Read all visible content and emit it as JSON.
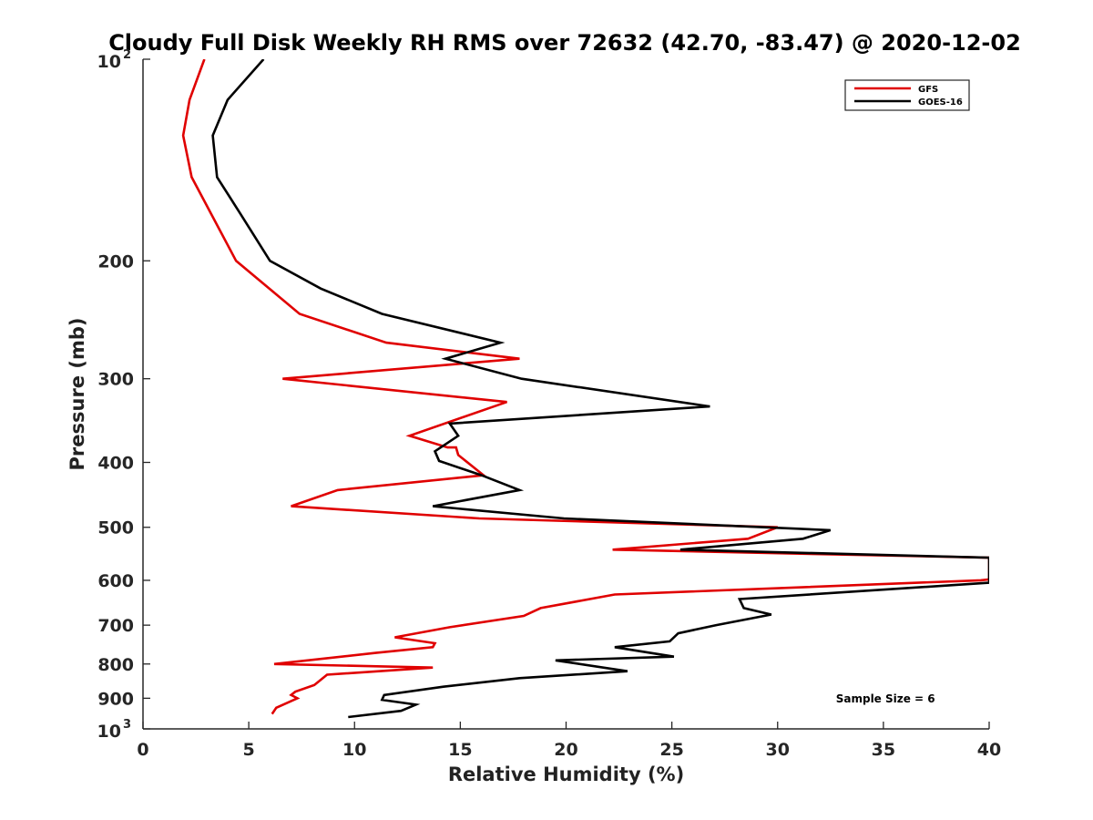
{
  "chart_data": {
    "type": "line",
    "title": "Cloudy Full Disk Weekly RH RMS over 72632 (42.70, -83.47) @ 2020-12-02",
    "xlabel": "Relative Humidity (%)",
    "ylabel": "Pressure (mb)",
    "xlim": [
      0,
      40
    ],
    "ylim": [
      100,
      1000
    ],
    "y_scale": "log",
    "y_reversed": true,
    "grid": false,
    "legend_position": "top-right",
    "x_ticks": [
      "0",
      "5",
      "10",
      "15",
      "20",
      "25",
      "30",
      "35",
      "40"
    ],
    "y_ticks": [
      {
        "value": 100,
        "base": "10",
        "exp": "2"
      },
      {
        "value": 200,
        "label": "200"
      },
      {
        "value": 300,
        "label": "300"
      },
      {
        "value": 400,
        "label": "400"
      },
      {
        "value": 500,
        "label": "500"
      },
      {
        "value": 600,
        "label": "600"
      },
      {
        "value": 700,
        "label": "700"
      },
      {
        "value": 800,
        "label": "800"
      },
      {
        "value": 900,
        "label": "900"
      },
      {
        "value": 1000,
        "base": "10",
        "exp": "3"
      }
    ],
    "annotation": "Sample Size = 6",
    "series": [
      {
        "name": "GFS",
        "color": "#e00000",
        "points": [
          [
            2.9,
            100
          ],
          [
            2.2,
            115
          ],
          [
            1.9,
            130
          ],
          [
            2.3,
            150
          ],
          [
            4.4,
            200
          ],
          [
            7.4,
            240
          ],
          [
            11.5,
            265
          ],
          [
            17.8,
            280
          ],
          [
            6.6,
            300
          ],
          [
            17.2,
            325
          ],
          [
            12.6,
            365
          ],
          [
            14.4,
            380
          ],
          [
            14.8,
            380
          ],
          [
            14.9,
            390
          ],
          [
            16.1,
            418
          ],
          [
            9.2,
            440
          ],
          [
            7.0,
            465
          ],
          [
            15.9,
            485
          ],
          [
            30.0,
            500
          ],
          [
            28.6,
            520
          ],
          [
            22.2,
            540
          ],
          [
            40.0,
            555
          ],
          [
            40.0,
            598
          ],
          [
            39.6,
            600
          ],
          [
            22.3,
            630
          ],
          [
            18.8,
            660
          ],
          [
            18.0,
            678
          ],
          [
            14.5,
            705
          ],
          [
            11.9,
            730
          ],
          [
            13.8,
            745
          ],
          [
            13.7,
            755
          ],
          [
            11.0,
            770
          ],
          [
            6.2,
            800
          ],
          [
            13.7,
            810
          ],
          [
            8.7,
            830
          ],
          [
            8.1,
            860
          ],
          [
            7.2,
            880
          ],
          [
            7.0,
            890
          ],
          [
            7.3,
            900
          ],
          [
            6.3,
            930
          ],
          [
            6.1,
            950
          ]
        ]
      },
      {
        "name": "GOES-16",
        "color": "#000000",
        "points": [
          [
            5.7,
            100
          ],
          [
            4.0,
            115
          ],
          [
            3.3,
            130
          ],
          [
            3.5,
            150
          ],
          [
            4.6,
            170
          ],
          [
            6.0,
            200
          ],
          [
            8.4,
            220
          ],
          [
            11.3,
            240
          ],
          [
            16.9,
            265
          ],
          [
            14.3,
            280
          ],
          [
            17.9,
            300
          ],
          [
            26.8,
            330
          ],
          [
            14.5,
            350
          ],
          [
            14.9,
            365
          ],
          [
            13.8,
            385
          ],
          [
            14.0,
            398
          ],
          [
            16.0,
            418
          ],
          [
            17.8,
            440
          ],
          [
            13.7,
            465
          ],
          [
            19.9,
            485
          ],
          [
            32.5,
            505
          ],
          [
            31.2,
            520
          ],
          [
            25.4,
            540
          ],
          [
            40.0,
            555
          ],
          [
            40.0,
            605
          ],
          [
            28.2,
            640
          ],
          [
            28.4,
            660
          ],
          [
            29.7,
            675
          ],
          [
            27.1,
            700
          ],
          [
            25.3,
            720
          ],
          [
            24.9,
            740
          ],
          [
            22.3,
            755
          ],
          [
            25.1,
            780
          ],
          [
            19.5,
            790
          ],
          [
            22.9,
            820
          ],
          [
            17.8,
            840
          ],
          [
            14.2,
            865
          ],
          [
            11.4,
            890
          ],
          [
            11.3,
            905
          ],
          [
            12.9,
            920
          ],
          [
            12.2,
            940
          ],
          [
            9.7,
            960
          ]
        ]
      }
    ]
  }
}
